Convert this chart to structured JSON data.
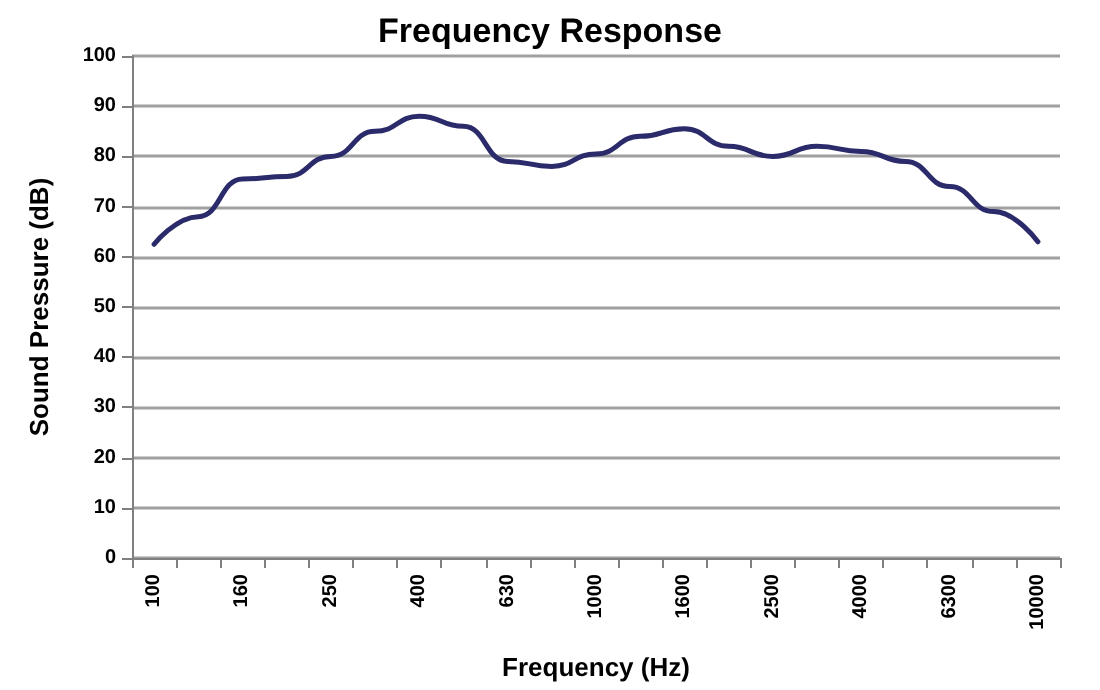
{
  "chart_data": {
    "type": "line",
    "title": "Frequency Response",
    "xlabel": "Frequency (Hz)",
    "ylabel": "Sound Pressure (dB)",
    "categories": [
      "100",
      null,
      "160",
      null,
      "250",
      null,
      "400",
      null,
      "630",
      null,
      "1000",
      null,
      "1600",
      null,
      "2500",
      null,
      "4000",
      null,
      "6300",
      null,
      "10000"
    ],
    "series": [
      {
        "color": "#2b2b6b",
        "values": [
          62.5,
          68,
          75.5,
          76,
          80,
          85,
          88,
          86,
          79,
          78,
          80.5,
          84,
          85.5,
          82,
          80,
          82,
          81,
          79,
          74,
          69,
          63
        ]
      }
    ],
    "ylim": [
      0,
      100
    ],
    "yticks": [
      0,
      10,
      20,
      30,
      40,
      50,
      60,
      70,
      80,
      90,
      100
    ],
    "grid": "y",
    "marker": "none",
    "line_style": "solid"
  }
}
